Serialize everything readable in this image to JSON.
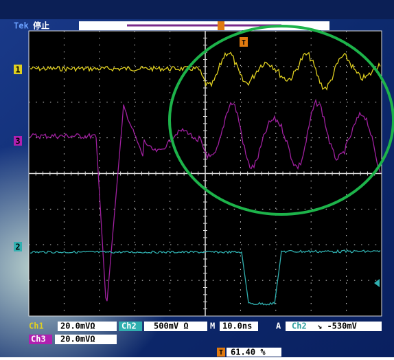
{
  "status": {
    "brand": "Tek",
    "state": "停止"
  },
  "markers": {
    "ch1": "1",
    "ch3": "3",
    "ch2": "2",
    "trigger": "T"
  },
  "readout": {
    "ch1_label": "Ch1",
    "ch1_scale": "20.0mVΩ",
    "ch2_label": "Ch2",
    "ch2_scale": "500mV Ω",
    "time_label": "M",
    "time_scale": "10.0ns",
    "trigger_label": "A",
    "trigger_source": "Ch2",
    "trigger_level": "↘ -530mV",
    "ch3_label": "Ch3",
    "ch3_scale": "20.0mVΩ",
    "position_label": "T",
    "position": "61.40 %"
  }
}
